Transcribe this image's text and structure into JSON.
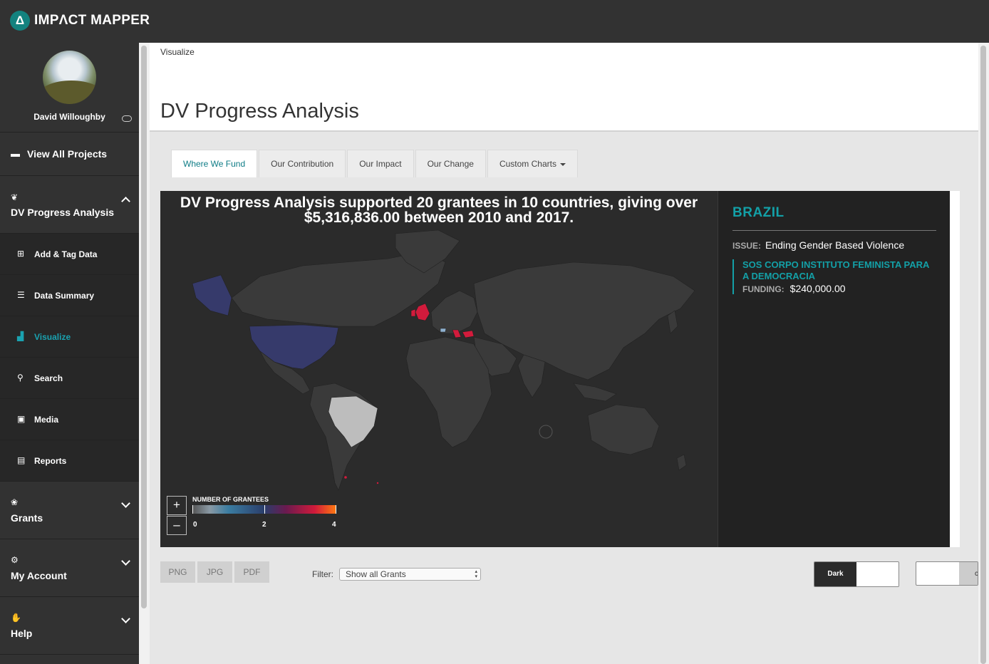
{
  "app": {
    "name": "IMPΛCT MAPPER",
    "logo_glyph": "Δ"
  },
  "user": {
    "name": "David Willoughby"
  },
  "sidebar": {
    "view_all": "View All Projects",
    "project": "DV Progress Analysis",
    "sub_items": [
      {
        "label": "Add & Tag Data",
        "icon": "plus-square-icon"
      },
      {
        "label": "Data Summary",
        "icon": "list-icon"
      },
      {
        "label": "Visualize",
        "icon": "bar-chart-icon",
        "active": true
      },
      {
        "label": "Search",
        "icon": "search-icon"
      },
      {
        "label": "Media",
        "icon": "image-icon"
      },
      {
        "label": "Reports",
        "icon": "document-icon"
      }
    ],
    "sections": [
      {
        "label": "Grants",
        "icon": "hand-plant-icon"
      },
      {
        "label": "My Account",
        "icon": "gears-icon"
      },
      {
        "label": "Help",
        "icon": "hand-icon"
      }
    ]
  },
  "breadcrumb": "Visualize",
  "page_title": "DV Progress Analysis",
  "tabs": [
    "Where We Fund",
    "Our Contribution",
    "Our Impact",
    "Our Change",
    "Custom Charts"
  ],
  "map": {
    "headline_line1": "DV Progress Analysis supported 20 grantees in 10 countries, giving over",
    "headline_line2": "$5,316,836.00 between 2010 and 2017.",
    "legend_title": "NUMBER OF GRANTEES",
    "legend_ticks": [
      "0",
      "2",
      "4"
    ],
    "zoom_in": "+",
    "zoom_out": "–"
  },
  "detail": {
    "country": "BRAZIL",
    "issue_label": "ISSUE:",
    "issue_value": "Ending Gender Based Violence",
    "grantee_name": "SOS CORPO INSTITUTO FEMINISTA PARA A DEMOCRACIA",
    "funding_label": "FUNDING:",
    "funding_value": "$240,000.00"
  },
  "exports": [
    "PNG",
    "JPG",
    "PDF"
  ],
  "filter": {
    "label": "Filter:",
    "selected": "Show all Grants"
  },
  "theme": {
    "dark_label": "Dark",
    "second_partial": "c"
  },
  "colors": {
    "accent": "#13a0a7",
    "topbar": "#323232",
    "map_land": "#3a3a3a",
    "usa": "#363a6b",
    "uk": "#d21b3c",
    "brazil": "#bdbdbd"
  }
}
